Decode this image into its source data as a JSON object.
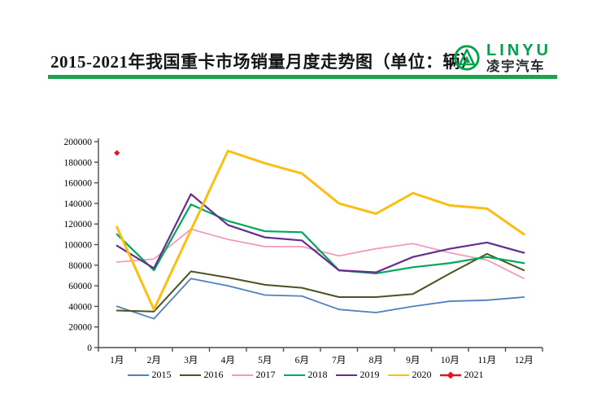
{
  "header": {
    "title": "2015-2021年我国重卡市场销量月度走势图（单位：辆）",
    "logo": {
      "name": "LINYU",
      "subtitle": "凌宇汽车",
      "color": "#00A14B"
    }
  },
  "colors": {
    "divider": "#1CA24C",
    "axis": "#4d4d4d",
    "label_text": "#000000"
  },
  "chart_data": {
    "type": "line",
    "title": "2015-2021年我国重卡市场销量月度走势图（单位：辆）",
    "unit": "辆",
    "categories": [
      "1月",
      "2月",
      "3月",
      "4月",
      "5月",
      "6月",
      "7月",
      "8月",
      "9月",
      "10月",
      "11月",
      "12月"
    ],
    "series": [
      {
        "name": "2015",
        "color": "#4F81BD",
        "width": 1.8,
        "values": [
          40000,
          28000,
          67000,
          60000,
          51000,
          50000,
          37000,
          34000,
          40000,
          45000,
          46000,
          49000
        ]
      },
      {
        "name": "2016",
        "color": "#4A5420",
        "width": 2,
        "values": [
          36000,
          35000,
          74000,
          68000,
          61000,
          58000,
          49000,
          49000,
          52000,
          72000,
          91000,
          75000
        ]
      },
      {
        "name": "2017",
        "color": "#F49AC1",
        "width": 1.8,
        "values": [
          83000,
          86000,
          115000,
          105000,
          98000,
          98000,
          89000,
          96000,
          101000,
          92000,
          85000,
          67000
        ]
      },
      {
        "name": "2018",
        "color": "#00A859",
        "width": 2.2,
        "values": [
          110000,
          75000,
          139000,
          123000,
          113000,
          112000,
          75000,
          72000,
          78000,
          82000,
          88000,
          82000
        ]
      },
      {
        "name": "2019",
        "color": "#662D91",
        "width": 2.2,
        "values": [
          99000,
          77000,
          149000,
          119000,
          107000,
          104000,
          75000,
          73000,
          88000,
          96000,
          102000,
          92000
        ]
      },
      {
        "name": "2020",
        "color": "#FCBE13",
        "width": 3,
        "values": [
          117000,
          37000,
          114000,
          191000,
          179000,
          169000,
          140000,
          130000,
          150000,
          138000,
          135000,
          110000
        ]
      },
      {
        "name": "2021",
        "color": "#E8131D",
        "width": 2,
        "marker": "diamond",
        "values": [
          189000,
          null,
          null,
          null,
          null,
          null,
          null,
          null,
          null,
          null,
          null,
          null
        ]
      }
    ],
    "ylim": [
      0,
      200000
    ],
    "y_ticks": [
      0,
      20000,
      40000,
      60000,
      80000,
      100000,
      120000,
      140000,
      160000,
      180000,
      200000
    ],
    "grid": false,
    "legend_position": "bottom"
  }
}
